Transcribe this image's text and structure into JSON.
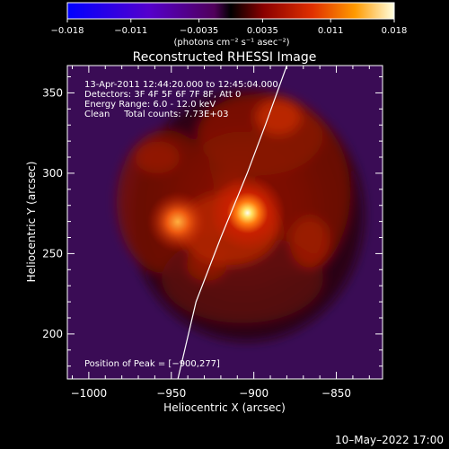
{
  "chart_data": {
    "type": "heatmap",
    "title": "Reconstructed RHESSI Image",
    "colorbar": {
      "ticks": [
        "−0.018",
        "−0.011",
        "−0.0035",
        "0.0035",
        "0.011",
        "0.018"
      ],
      "range": [
        -0.018,
        0.018
      ],
      "label": "(photons cm⁻² s⁻¹ asec⁻²)"
    },
    "xlabel": "Heliocentric X (arcsec)",
    "ylabel": "Heliocentric Y (arcsec)",
    "xlim": [
      -1013,
      -822
    ],
    "ylim": [
      172,
      367
    ],
    "xticks": [
      -1000,
      -950,
      -900,
      -850
    ],
    "xticklabels": [
      "−1000",
      "−950",
      "−900",
      "−850"
    ],
    "yticks": [
      200,
      250,
      300,
      350
    ],
    "yticklabels": [
      "200",
      "250",
      "300",
      "350"
    ],
    "annotations": [
      "13-Apr-2011 12:44:20.000 to 12:45:04.000",
      "Detectors: 3F 4F 5F 6F 7F 8F, Att 0",
      "Energy Range: 6.0 - 12.0 keV",
      "Clean     Total counts: 7.73E+03"
    ],
    "peak_label": "Position of Peak = [−900,277]",
    "peak": [
      -900,
      277
    ],
    "secondary_source": [
      -945,
      267
    ],
    "limb_curve": [
      [
        -946,
        172
      ],
      [
        -935,
        220
      ],
      [
        -920,
        260
      ],
      [
        -904,
        300
      ],
      [
        -893,
        330
      ],
      [
        -880,
        367
      ]
    ]
  },
  "footer": {
    "timestamp": "10–May–2022 17:00"
  }
}
